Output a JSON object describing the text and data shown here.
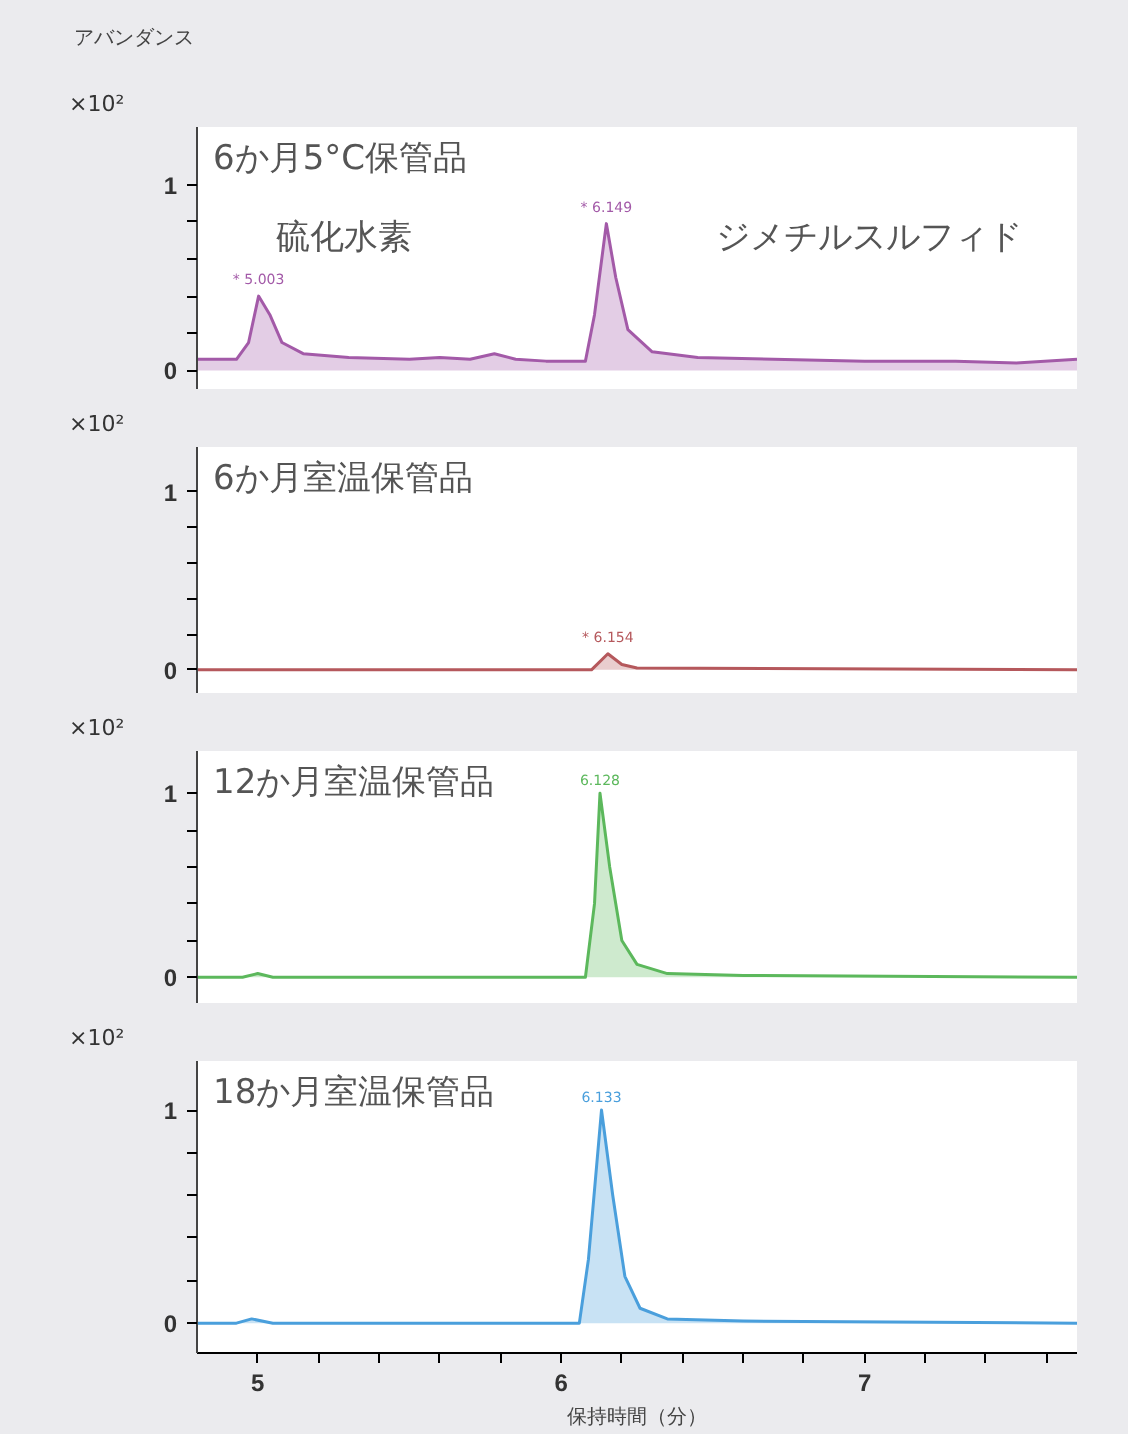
{
  "chart_data": [
    {
      "type": "area",
      "title": "6か月5°C保管品",
      "ylabel": "アバンダンス",
      "x": [
        4.8,
        4.93,
        4.97,
        5.003,
        5.04,
        5.08,
        5.15,
        5.3,
        5.5,
        5.6,
        5.7,
        5.78,
        5.85,
        5.95,
        6.08,
        6.11,
        6.149,
        6.18,
        6.22,
        6.3,
        6.45,
        6.7,
        7.0,
        7.3,
        7.5,
        7.7
      ],
      "series": [
        {
          "color": "#a35aa8",
          "values": [
            0.06,
            0.06,
            0.15,
            0.4,
            0.3,
            0.15,
            0.09,
            0.07,
            0.06,
            0.07,
            0.06,
            0.09,
            0.06,
            0.05,
            0.05,
            0.3,
            0.79,
            0.5,
            0.22,
            0.1,
            0.07,
            0.06,
            0.05,
            0.05,
            0.04,
            0.06
          ]
        }
      ],
      "xlim": [
        4.8,
        7.7
      ],
      "ylim": [
        -0.1,
        1.31
      ],
      "yticks": [
        0,
        {
          "value": 0.2,
          "label": null
        },
        {
          "value": 0.4,
          "label": null
        },
        {
          "value": 0.6,
          "label": null
        },
        {
          "value": 0.8,
          "label": null
        },
        1
      ],
      "tick_labels": "y",
      "grid": false,
      "annotations": [
        "×10²",
        {
          "text": "* 5.003",
          "x": 5.003,
          "y": 0.4
        },
        {
          "text": "* 6.149",
          "x": 6.149,
          "y": 0.79
        },
        "硫化水素",
        "ジメチルスルフィド"
      ]
    },
    {
      "type": "area",
      "title": "6か月室温保管品",
      "x": [
        4.8,
        6.1,
        6.154,
        6.2,
        6.25,
        7.7
      ],
      "series": [
        {
          "color": "#b5585c",
          "values": [
            0,
            0,
            0.09,
            0.03,
            0.01,
            0
          ]
        }
      ],
      "xlim": [
        4.8,
        7.7
      ],
      "ylim": [
        -0.13,
        1.25
      ],
      "yticks": [
        0,
        {
          "value": 0.2,
          "label": null
        },
        {
          "value": 0.4,
          "label": null
        },
        {
          "value": 0.6,
          "label": null
        },
        {
          "value": 0.8,
          "label": null
        },
        1
      ],
      "tick_labels": "y",
      "grid": false,
      "annotations": [
        "×10²",
        {
          "text": "* 6.154",
          "x": 6.154,
          "y": 0.09
        }
      ]
    },
    {
      "type": "area",
      "title": "12か月室温保管品",
      "x": [
        4.8,
        4.95,
        5.0,
        5.05,
        6.08,
        6.11,
        6.128,
        6.16,
        6.2,
        6.25,
        6.35,
        6.6,
        7.7
      ],
      "series": [
        {
          "color": "#5cb85c",
          "values": [
            0,
            0,
            0.02,
            0,
            0,
            0.4,
            1.0,
            0.6,
            0.2,
            0.07,
            0.02,
            0.01,
            0
          ]
        }
      ],
      "xlim": [
        4.8,
        7.7
      ],
      "ylim": [
        -0.14,
        1.23
      ],
      "yticks": [
        0,
        {
          "value": 0.2,
          "label": null
        },
        {
          "value": 0.4,
          "label": null
        },
        {
          "value": 0.6,
          "label": null
        },
        {
          "value": 0.8,
          "label": null
        },
        1
      ],
      "tick_labels": "y",
      "grid": false,
      "annotations": [
        "×10²",
        {
          "text": "6.128",
          "x": 6.128,
          "y": 1.0
        }
      ]
    },
    {
      "type": "area",
      "title": "18か月室温保管品",
      "xlabel": "保持時間（分）",
      "x": [
        4.8,
        4.93,
        4.98,
        5.05,
        6.06,
        6.09,
        6.133,
        6.17,
        6.21,
        6.26,
        6.35,
        6.6,
        7.7
      ],
      "series": [
        {
          "color": "#4a9fdc",
          "values": [
            0,
            0,
            0.02,
            0,
            0,
            0.3,
            1.0,
            0.6,
            0.22,
            0.07,
            0.02,
            0.01,
            0
          ]
        }
      ],
      "xlim": [
        4.8,
        7.7
      ],
      "xticks": [
        5,
        {
          "value": 5.2,
          "label": null
        },
        {
          "value": 5.4,
          "label": null
        },
        {
          "value": 5.6,
          "label": null
        },
        {
          "value": 5.8,
          "label": null
        },
        6,
        {
          "value": 6.2,
          "label": null
        },
        {
          "value": 6.4,
          "label": null
        },
        {
          "value": 6.6,
          "label": null
        },
        {
          "value": 6.8,
          "label": null
        },
        7,
        {
          "value": 7.2,
          "label": null
        },
        {
          "value": 7.4,
          "label": null
        },
        {
          "value": 7.6,
          "label": null
        }
      ],
      "ylim": [
        -0.14,
        1.23
      ],
      "yticks": [
        0,
        {
          "value": 0.2,
          "label": null
        },
        {
          "value": 0.4,
          "label": null
        },
        {
          "value": 0.6,
          "label": null
        },
        {
          "value": 0.8,
          "label": null
        },
        1
      ],
      "grid": false,
      "annotations": [
        "×10²",
        {
          "text": "6.133",
          "x": 6.133,
          "y": 1.0
        }
      ]
    }
  ]
}
